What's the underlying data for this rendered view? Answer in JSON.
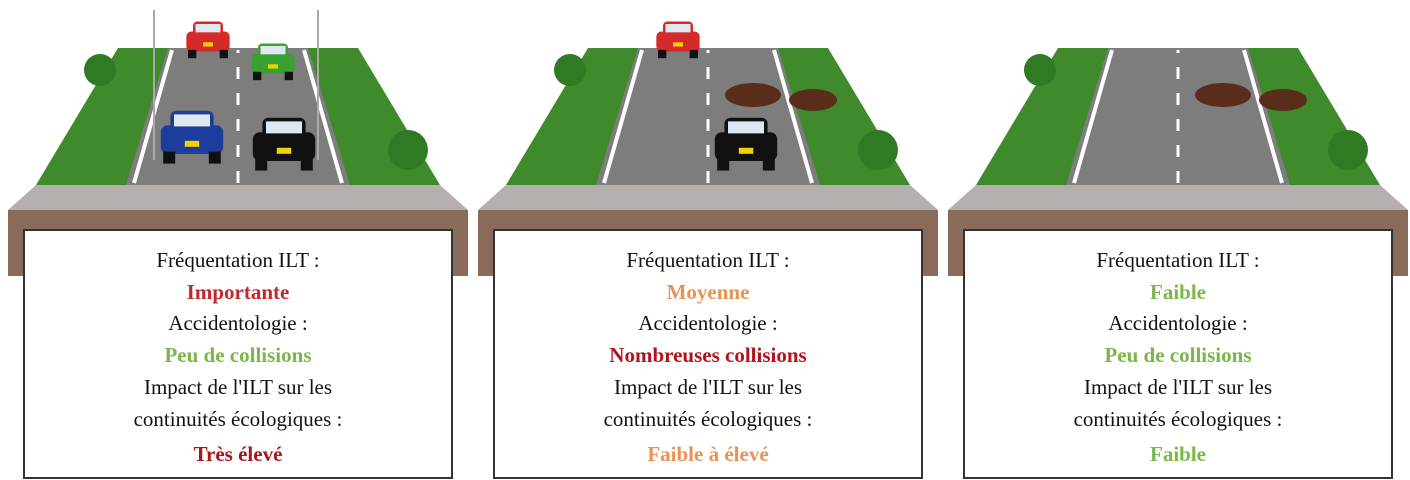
{
  "panels": [
    {
      "lines": [
        {
          "text": "Fréquentation ILT :",
          "color": "#111111"
        },
        {
          "text": "Importante",
          "color": "#c1272d"
        },
        {
          "text": "Accidentologie :",
          "color": "#111111"
        },
        {
          "text": "Peu de collisions",
          "color": "#7ab648"
        },
        {
          "text": "Impact de l'ILT sur les",
          "color": "#111111"
        },
        {
          "text": "continuités écologiques :",
          "color": "#111111"
        },
        {
          "text": "Très élevé",
          "color": "#a3171d"
        }
      ]
    },
    {
      "lines": [
        {
          "text": "Fréquentation ILT :",
          "color": "#111111"
        },
        {
          "text": "Moyenne",
          "color": "#ea9255"
        },
        {
          "text": "Accidentologie :",
          "color": "#111111"
        },
        {
          "text": "Nombreuses collisions",
          "color": "#b3141c"
        },
        {
          "text": "Impact de l'ILT sur les",
          "color": "#111111"
        },
        {
          "text": "continuités écologiques :",
          "color": "#111111"
        },
        {
          "text": "Faible à élevé",
          "color": "#ea9255"
        }
      ]
    },
    {
      "lines": [
        {
          "text": "Fréquentation ILT :",
          "color": "#111111"
        },
        {
          "text": "Faible",
          "color": "#7ab648"
        },
        {
          "text": "Accidentologie :",
          "color": "#111111"
        },
        {
          "text": "Peu de collisions",
          "color": "#7ab648"
        },
        {
          "text": "Impact de l'ILT sur les",
          "color": "#111111"
        },
        {
          "text": "continuités écologiques :",
          "color": "#111111"
        },
        {
          "text": "Faible",
          "color": "#7ab648"
        }
      ]
    }
  ]
}
